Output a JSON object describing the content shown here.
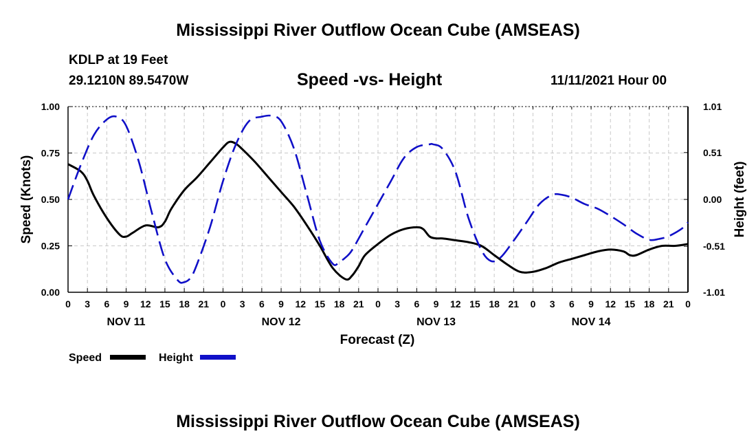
{
  "page": {
    "main_title": "Mississippi River Outflow Ocean Cube (AMSEAS)",
    "station": "KDLP at 19 Feet",
    "coords": "29.1210N  89.5470W",
    "chart_title": "Speed -vs- Height",
    "datetime": "11/11/2021 Hour 00",
    "footer_title": "Mississippi River Outflow Ocean Cube (AMSEAS)"
  },
  "chart_data": {
    "type": "line",
    "title": "Speed -vs- Height",
    "xlabel": "Forecast (Z)",
    "ylabel": "Speed (Knots)",
    "y2label": "Height (feet)",
    "x_range_hours": [
      0,
      96
    ],
    "xticks": [
      0,
      3,
      6,
      9,
      12,
      15,
      18,
      21,
      24,
      27,
      30,
      33,
      36,
      39,
      42,
      45,
      48,
      51,
      54,
      57,
      60,
      63,
      66,
      69,
      72,
      75,
      78,
      81,
      84,
      87,
      90,
      93,
      96
    ],
    "xtick_labels": [
      "0",
      "3",
      "6",
      "9",
      "12",
      "15",
      "18",
      "21",
      "0",
      "3",
      "6",
      "9",
      "12",
      "15",
      "18",
      "21",
      "0",
      "3",
      "6",
      "9",
      "12",
      "15",
      "18",
      "21",
      "0",
      "3",
      "6",
      "9",
      "12",
      "15",
      "18",
      "21",
      "0"
    ],
    "day_labels": [
      {
        "label": "NOV 11",
        "hour": 9
      },
      {
        "label": "NOV 12",
        "hour": 33
      },
      {
        "label": "NOV 13",
        "hour": 57
      },
      {
        "label": "NOV 14",
        "hour": 81
      }
    ],
    "ylim": [
      0,
      1.0
    ],
    "yticks": [
      0.0,
      0.25,
      0.5,
      0.75,
      1.0
    ],
    "ytick_labels": [
      "0.00",
      "0.25",
      "0.50",
      "0.75",
      "1.00"
    ],
    "y2lim": [
      -1.01,
      1.01
    ],
    "y2ticks": [
      -1.01,
      -0.51,
      0.0,
      0.51,
      1.01
    ],
    "y2tick_labels": [
      "-1.01",
      "-0.51",
      "0.00",
      "0.51",
      "1.01"
    ],
    "grid": true,
    "legend": [
      {
        "name": "Speed",
        "color": "#000000",
        "dash": "solid"
      },
      {
        "name": "Height",
        "color": "#1010c8",
        "dash": "dashed"
      }
    ],
    "series": [
      {
        "name": "Speed",
        "axis": "left",
        "color": "#000000",
        "x": [
          0,
          2,
          3,
          4,
          6,
          8,
          9,
          10,
          12,
          14,
          15,
          16,
          18,
          20,
          22,
          24,
          25,
          26,
          27,
          29,
          31,
          33,
          35,
          37,
          39,
          41,
          43,
          44,
          45,
          46,
          48,
          50,
          52,
          54,
          55,
          56,
          57,
          58,
          60,
          62,
          64,
          66,
          68,
          70,
          72,
          74,
          76,
          78,
          80,
          82,
          84,
          86,
          87,
          88,
          90,
          92,
          94,
          96
        ],
        "values": [
          0.69,
          0.65,
          0.6,
          0.52,
          0.4,
          0.31,
          0.3,
          0.32,
          0.36,
          0.35,
          0.38,
          0.45,
          0.55,
          0.62,
          0.7,
          0.78,
          0.81,
          0.8,
          0.77,
          0.7,
          0.62,
          0.54,
          0.46,
          0.36,
          0.25,
          0.13,
          0.07,
          0.09,
          0.14,
          0.2,
          0.26,
          0.31,
          0.34,
          0.35,
          0.34,
          0.3,
          0.29,
          0.29,
          0.28,
          0.27,
          0.25,
          0.2,
          0.15,
          0.11,
          0.11,
          0.13,
          0.16,
          0.18,
          0.2,
          0.22,
          0.23,
          0.22,
          0.2,
          0.2,
          0.23,
          0.25,
          0.25,
          0.26
        ]
      },
      {
        "name": "Height",
        "axis": "right",
        "color": "#1010c8",
        "x": [
          0,
          2,
          4,
          6,
          7.5,
          9,
          11,
          13,
          15,
          17,
          18,
          19,
          20,
          22,
          24,
          26,
          28,
          30,
          31.5,
          33,
          35,
          37,
          39,
          41,
          42,
          43,
          44,
          46,
          48,
          50,
          52,
          54,
          56,
          56.5,
          58,
          60,
          62,
          64,
          65.5,
          67,
          69,
          71,
          73,
          75,
          76.5,
          78,
          80,
          82,
          84,
          86,
          88,
          90,
          91.5,
          93,
          95,
          96
        ],
        "values": [
          0.0,
          0.38,
          0.7,
          0.87,
          0.9,
          0.8,
          0.4,
          -0.15,
          -0.65,
          -0.88,
          -0.9,
          -0.85,
          -0.7,
          -0.3,
          0.2,
          0.6,
          0.85,
          0.9,
          0.91,
          0.85,
          0.55,
          0.05,
          -0.45,
          -0.7,
          -0.68,
          -0.63,
          -0.55,
          -0.3,
          -0.05,
          0.2,
          0.45,
          0.57,
          0.6,
          0.6,
          0.55,
          0.3,
          -0.2,
          -0.55,
          -0.67,
          -0.63,
          -0.45,
          -0.25,
          -0.05,
          0.05,
          0.05,
          0.02,
          -0.05,
          -0.1,
          -0.18,
          -0.27,
          -0.37,
          -0.44,
          -0.43,
          -0.4,
          -0.32,
          -0.25
        ]
      }
    ]
  }
}
